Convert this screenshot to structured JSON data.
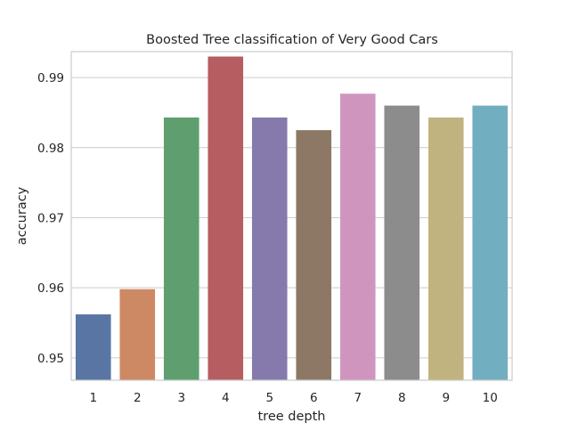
{
  "chart_data": {
    "type": "bar",
    "title": "Boosted Tree classification of Very Good Cars",
    "xlabel": "tree depth",
    "ylabel": "accuracy",
    "categories": [
      "1",
      "2",
      "3",
      "4",
      "5",
      "6",
      "7",
      "8",
      "9",
      "10"
    ],
    "values": [
      0.9562,
      0.9598,
      0.9843,
      0.993,
      0.9843,
      0.9825,
      0.9877,
      0.986,
      0.9843,
      0.986
    ],
    "ylim": [
      0.9468,
      0.9937
    ],
    "yticks": [
      0.95,
      0.96,
      0.97,
      0.98,
      0.99
    ],
    "ytick_labels": [
      "0.95",
      "0.96",
      "0.97",
      "0.98",
      "0.99"
    ],
    "colors": [
      "#5875a4",
      "#cc8963",
      "#5f9e6e",
      "#b55d60",
      "#857aab",
      "#8d7866",
      "#d095bf",
      "#8c8c8c",
      "#c1b37f",
      "#71aec0"
    ],
    "grid": true,
    "legend": "none"
  }
}
